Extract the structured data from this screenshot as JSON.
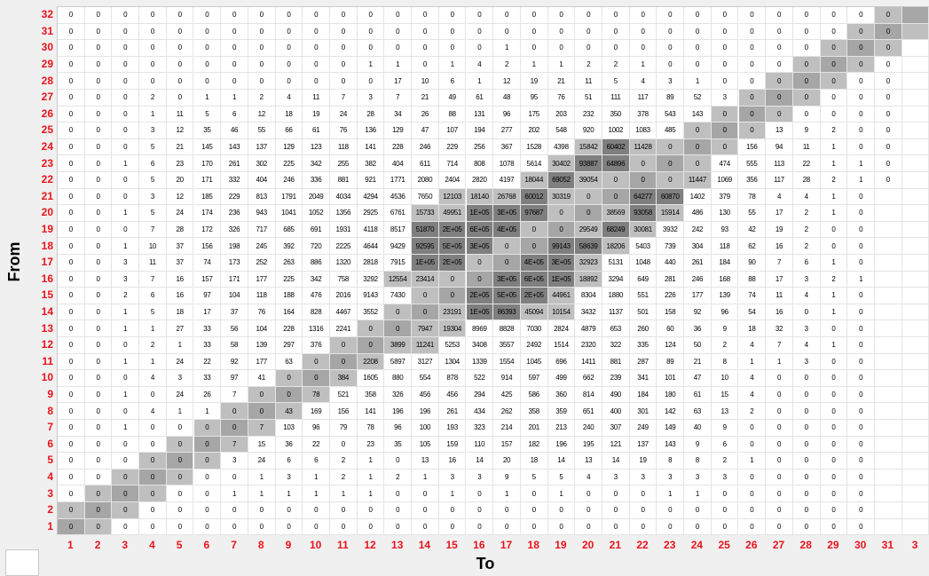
{
  "axis": {
    "y_title": "From",
    "x_title": "To"
  },
  "colors": {
    "label_red": "#e8141b",
    "diag_dark": "#7f7f7f",
    "diag_mid": "#a6a6a6",
    "diag_light": "#bfbfbf",
    "background": "#f0f0f0"
  },
  "chart_data": {
    "type": "heatmap",
    "x_label": "To",
    "y_label": "From",
    "x_ticks": [
      "1",
      "2",
      "3",
      "4",
      "5",
      "6",
      "7",
      "8",
      "9",
      "10",
      "11",
      "12",
      "13",
      "14",
      "15",
      "16",
      "17",
      "18",
      "19",
      "20",
      "21",
      "22",
      "23",
      "24",
      "25",
      "26",
      "27",
      "28",
      "29",
      "30",
      "31",
      "3"
    ],
    "y_ticks": [
      "32",
      "31",
      "30",
      "29",
      "28",
      "27",
      "26",
      "25",
      "24",
      "23",
      "22",
      "21",
      "20",
      "19",
      "18",
      "17",
      "16",
      "15",
      "14",
      "13",
      "12",
      "11",
      "10",
      "9",
      "8",
      "7",
      "6",
      "5",
      "4",
      "3",
      "2",
      "1"
    ],
    "rows": [
      [
        "0",
        "0",
        "0",
        "0",
        "0",
        "0",
        "0",
        "0",
        "0",
        "0",
        "0",
        "0",
        "0",
        "0",
        "0",
        "0",
        "0",
        "0",
        "0",
        "0",
        "0",
        "0",
        "0",
        "0",
        "0",
        "0",
        "0",
        "0",
        "0",
        "0",
        "0",
        ""
      ],
      [
        "0",
        "0",
        "0",
        "0",
        "0",
        "0",
        "0",
        "0",
        "0",
        "0",
        "0",
        "0",
        "0",
        "0",
        "0",
        "0",
        "0",
        "0",
        "0",
        "0",
        "0",
        "0",
        "0",
        "0",
        "0",
        "0",
        "0",
        "0",
        "0",
        "0",
        "0",
        ""
      ],
      [
        "0",
        "0",
        "0",
        "0",
        "0",
        "0",
        "0",
        "0",
        "0",
        "0",
        "0",
        "0",
        "0",
        "0",
        "0",
        "0",
        "1",
        "0",
        "0",
        "0",
        "0",
        "0",
        "0",
        "0",
        "0",
        "0",
        "0",
        "0",
        "0",
        "0",
        "0",
        ""
      ],
      [
        "0",
        "0",
        "0",
        "0",
        "0",
        "0",
        "0",
        "0",
        "0",
        "0",
        "0",
        "1",
        "1",
        "0",
        "1",
        "4",
        "2",
        "1",
        "1",
        "2",
        "2",
        "1",
        "0",
        "0",
        "0",
        "0",
        "0",
        "0",
        "0",
        "0",
        "0",
        ""
      ],
      [
        "0",
        "0",
        "0",
        "0",
        "0",
        "0",
        "0",
        "0",
        "0",
        "0",
        "0",
        "0",
        "17",
        "10",
        "6",
        "1",
        "12",
        "19",
        "21",
        "11",
        "5",
        "4",
        "3",
        "1",
        "0",
        "0",
        "0",
        "0",
        "0",
        "0",
        "0",
        ""
      ],
      [
        "0",
        "0",
        "0",
        "2",
        "0",
        "1",
        "1",
        "2",
        "4",
        "11",
        "7",
        "3",
        "7",
        "21",
        "49",
        "61",
        "48",
        "95",
        "76",
        "51",
        "111",
        "117",
        "89",
        "52",
        "3",
        "0",
        "0",
        "0",
        "0",
        "0",
        "0",
        ""
      ],
      [
        "0",
        "0",
        "0",
        "1",
        "11",
        "5",
        "6",
        "12",
        "18",
        "19",
        "24",
        "28",
        "34",
        "26",
        "88",
        "131",
        "96",
        "175",
        "203",
        "232",
        "350",
        "378",
        "543",
        "143",
        "0",
        "0",
        "0",
        "0",
        "0",
        "0",
        "0",
        ""
      ],
      [
        "0",
        "0",
        "0",
        "3",
        "12",
        "35",
        "46",
        "55",
        "66",
        "61",
        "76",
        "136",
        "129",
        "47",
        "107",
        "194",
        "277",
        "202",
        "548",
        "920",
        "1002",
        "1083",
        "485",
        "0",
        "0",
        "0",
        "13",
        "9",
        "2",
        "0",
        "0",
        ""
      ],
      [
        "0",
        "0",
        "0",
        "5",
        "21",
        "145",
        "143",
        "137",
        "129",
        "123",
        "118",
        "141",
        "228",
        "246",
        "229",
        "256",
        "367",
        "1528",
        "4398",
        "15842",
        "60402",
        "11428",
        "0",
        "0",
        "0",
        "156",
        "94",
        "11",
        "1",
        "0",
        "0",
        ""
      ],
      [
        "0",
        "0",
        "1",
        "6",
        "23",
        "170",
        "261",
        "302",
        "225",
        "342",
        "255",
        "382",
        "404",
        "611",
        "714",
        "808",
        "1078",
        "5614",
        "30402",
        "93887",
        "64896",
        "0",
        "0",
        "0",
        "474",
        "555",
        "113",
        "22",
        "1",
        "1",
        "0",
        ""
      ],
      [
        "0",
        "0",
        "0",
        "5",
        "20",
        "171",
        "332",
        "404",
        "246",
        "336",
        "881",
        "921",
        "1771",
        "2080",
        "2404",
        "2820",
        "4197",
        "18044",
        "69052",
        "39054",
        "0",
        "0",
        "0",
        "11447",
        "1069",
        "356",
        "117",
        "28",
        "2",
        "1",
        "0",
        ""
      ],
      [
        "0",
        "0",
        "0",
        "3",
        "12",
        "185",
        "229",
        "813",
        "1791",
        "2049",
        "4034",
        "4294",
        "4536",
        "7650",
        "12103",
        "18140",
        "26768",
        "60012",
        "30319",
        "0",
        "0",
        "64277",
        "60870",
        "1402",
        "379",
        "78",
        "4",
        "4",
        "1",
        "0",
        ""
      ],
      [
        "0",
        "0",
        "1",
        "5",
        "24",
        "174",
        "236",
        "943",
        "1041",
        "1052",
        "1356",
        "2925",
        "6761",
        "15733",
        "49951",
        "1E+05",
        "3E+05",
        "97687",
        "0",
        "0",
        "38569",
        "93058",
        "15914",
        "486",
        "130",
        "55",
        "17",
        "2",
        "1",
        "0",
        "",
        ""
      ],
      [
        "0",
        "0",
        "0",
        "7",
        "28",
        "172",
        "326",
        "717",
        "685",
        "691",
        "1931",
        "4118",
        "8517",
        "51870",
        "2E+05",
        "6E+05",
        "4E+05",
        "0",
        "0",
        "29549",
        "68249",
        "30081",
        "3932",
        "242",
        "93",
        "42",
        "19",
        "2",
        "0",
        "0",
        "",
        ""
      ],
      [
        "0",
        "0",
        "1",
        "10",
        "37",
        "156",
        "198",
        "245",
        "392",
        "720",
        "2225",
        "4644",
        "9429",
        "92595",
        "5E+05",
        "3E+05",
        "0",
        "0",
        "99143",
        "58639",
        "18206",
        "5403",
        "739",
        "304",
        "118",
        "62",
        "16",
        "2",
        "0",
        "0",
        "",
        ""
      ],
      [
        "0",
        "0",
        "3",
        "11",
        "37",
        "74",
        "173",
        "252",
        "263",
        "886",
        "1320",
        "2818",
        "7915",
        "1E+05",
        "2E+05",
        "0",
        "0",
        "4E+05",
        "3E+05",
        "32923",
        "5131",
        "1048",
        "440",
        "261",
        "184",
        "90",
        "7",
        "6",
        "1",
        "0",
        "",
        ""
      ],
      [
        "0",
        "0",
        "3",
        "7",
        "16",
        "157",
        "171",
        "177",
        "225",
        "342",
        "758",
        "3292",
        "12554",
        "23414",
        "0",
        "0",
        "3E+05",
        "6E+05",
        "1E+05",
        "18892",
        "3294",
        "649",
        "281",
        "246",
        "168",
        "88",
        "17",
        "3",
        "2",
        "1",
        "",
        ""
      ],
      [
        "0",
        "0",
        "2",
        "6",
        "16",
        "97",
        "104",
        "118",
        "188",
        "476",
        "2016",
        "9143",
        "7430",
        "0",
        "0",
        "2E+05",
        "5E+05",
        "2E+05",
        "44961",
        "8304",
        "1880",
        "551",
        "226",
        "177",
        "139",
        "74",
        "11",
        "4",
        "1",
        "0",
        "",
        ""
      ],
      [
        "0",
        "0",
        "1",
        "5",
        "18",
        "17",
        "37",
        "76",
        "164",
        "828",
        "4467",
        "3552",
        "0",
        "0",
        "23191",
        "1E+05",
        "86393",
        "45094",
        "10154",
        "3432",
        "1137",
        "501",
        "158",
        "92",
        "96",
        "54",
        "16",
        "0",
        "1",
        "0",
        "",
        ""
      ],
      [
        "0",
        "0",
        "1",
        "1",
        "27",
        "33",
        "56",
        "104",
        "228",
        "1316",
        "2241",
        "0",
        "0",
        "7947",
        "19304",
        "8969",
        "8828",
        "7030",
        "2824",
        "4879",
        "653",
        "260",
        "60",
        "36",
        "9",
        "18",
        "32",
        "3",
        "0",
        "0",
        "",
        ""
      ],
      [
        "0",
        "0",
        "0",
        "2",
        "1",
        "33",
        "58",
        "139",
        "297",
        "376",
        "0",
        "0",
        "3899",
        "11241",
        "5253",
        "3408",
        "3557",
        "2492",
        "1514",
        "2320",
        "322",
        "335",
        "124",
        "50",
        "2",
        "4",
        "7",
        "4",
        "1",
        "0",
        "",
        ""
      ],
      [
        "0",
        "0",
        "1",
        "1",
        "24",
        "22",
        "92",
        "177",
        "63",
        "0",
        "0",
        "2208",
        "5897",
        "3127",
        "1304",
        "1339",
        "1554",
        "1045",
        "696",
        "1411",
        "881",
        "287",
        "89",
        "21",
        "8",
        "1",
        "1",
        "3",
        "0",
        "0",
        "",
        ""
      ],
      [
        "0",
        "0",
        "0",
        "4",
        "3",
        "33",
        "97",
        "41",
        "0",
        "0",
        "384",
        "1605",
        "880",
        "554",
        "878",
        "522",
        "914",
        "597",
        "499",
        "662",
        "239",
        "341",
        "101",
        "47",
        "10",
        "4",
        "0",
        "0",
        "0",
        "0",
        "",
        ""
      ],
      [
        "0",
        "0",
        "1",
        "0",
        "24",
        "26",
        "7",
        "0",
        "0",
        "78",
        "521",
        "358",
        "326",
        "456",
        "456",
        "294",
        "425",
        "586",
        "360",
        "814",
        "490",
        "184",
        "180",
        "61",
        "15",
        "4",
        "0",
        "0",
        "0",
        "0",
        "",
        ""
      ],
      [
        "0",
        "0",
        "0",
        "4",
        "1",
        "1",
        "0",
        "0",
        "43",
        "169",
        "156",
        "141",
        "196",
        "196",
        "261",
        "434",
        "262",
        "358",
        "359",
        "651",
        "400",
        "301",
        "142",
        "63",
        "13",
        "2",
        "0",
        "0",
        "0",
        "0",
        "",
        ""
      ],
      [
        "0",
        "0",
        "1",
        "0",
        "0",
        "0",
        "0",
        "7",
        "103",
        "96",
        "79",
        "78",
        "96",
        "100",
        "193",
        "323",
        "214",
        "201",
        "213",
        "240",
        "307",
        "249",
        "149",
        "40",
        "9",
        "0",
        "0",
        "0",
        "0",
        "0",
        "",
        ""
      ],
      [
        "0",
        "0",
        "0",
        "0",
        "0",
        "0",
        "7",
        "15",
        "36",
        "22",
        "0",
        "23",
        "35",
        "105",
        "159",
        "110",
        "157",
        "182",
        "196",
        "195",
        "121",
        "137",
        "143",
        "9",
        "6",
        "0",
        "0",
        "0",
        "0",
        "0",
        "",
        ""
      ],
      [
        "0",
        "0",
        "0",
        "0",
        "0",
        "0",
        "3",
        "24",
        "6",
        "6",
        "2",
        "1",
        "0",
        "13",
        "16",
        "14",
        "20",
        "18",
        "14",
        "13",
        "14",
        "19",
        "8",
        "8",
        "2",
        "1",
        "0",
        "0",
        "0",
        "0",
        "",
        ""
      ],
      [
        "0",
        "0",
        "0",
        "0",
        "0",
        "0",
        "0",
        "1",
        "3",
        "1",
        "2",
        "1",
        "2",
        "1",
        "3",
        "3",
        "9",
        "5",
        "5",
        "4",
        "3",
        "3",
        "3",
        "3",
        "3",
        "0",
        "0",
        "0",
        "0",
        "0",
        "",
        ""
      ],
      [
        "0",
        "0",
        "0",
        "0",
        "0",
        "0",
        "1",
        "1",
        "1",
        "1",
        "1",
        "1",
        "0",
        "0",
        "1",
        "0",
        "1",
        "0",
        "1",
        "0",
        "0",
        "0",
        "1",
        "1",
        "0",
        "0",
        "0",
        "0",
        "0",
        "0",
        "",
        ""
      ],
      [
        "0",
        "0",
        "0",
        "0",
        "0",
        "0",
        "0",
        "0",
        "0",
        "0",
        "0",
        "0",
        "0",
        "0",
        "0",
        "0",
        "0",
        "0",
        "0",
        "0",
        "0",
        "0",
        "0",
        "0",
        "0",
        "0",
        "0",
        "0",
        "0",
        "0",
        "",
        ""
      ],
      [
        "0",
        "0",
        "0",
        "0",
        "0",
        "0",
        "0",
        "0",
        "0",
        "0",
        "0",
        "0",
        "0",
        "0",
        "0",
        "0",
        "0",
        "0",
        "0",
        "0",
        "0",
        "0",
        "0",
        "0",
        "0",
        "0",
        "0",
        "0",
        "0",
        "0",
        "",
        ""
      ]
    ]
  }
}
